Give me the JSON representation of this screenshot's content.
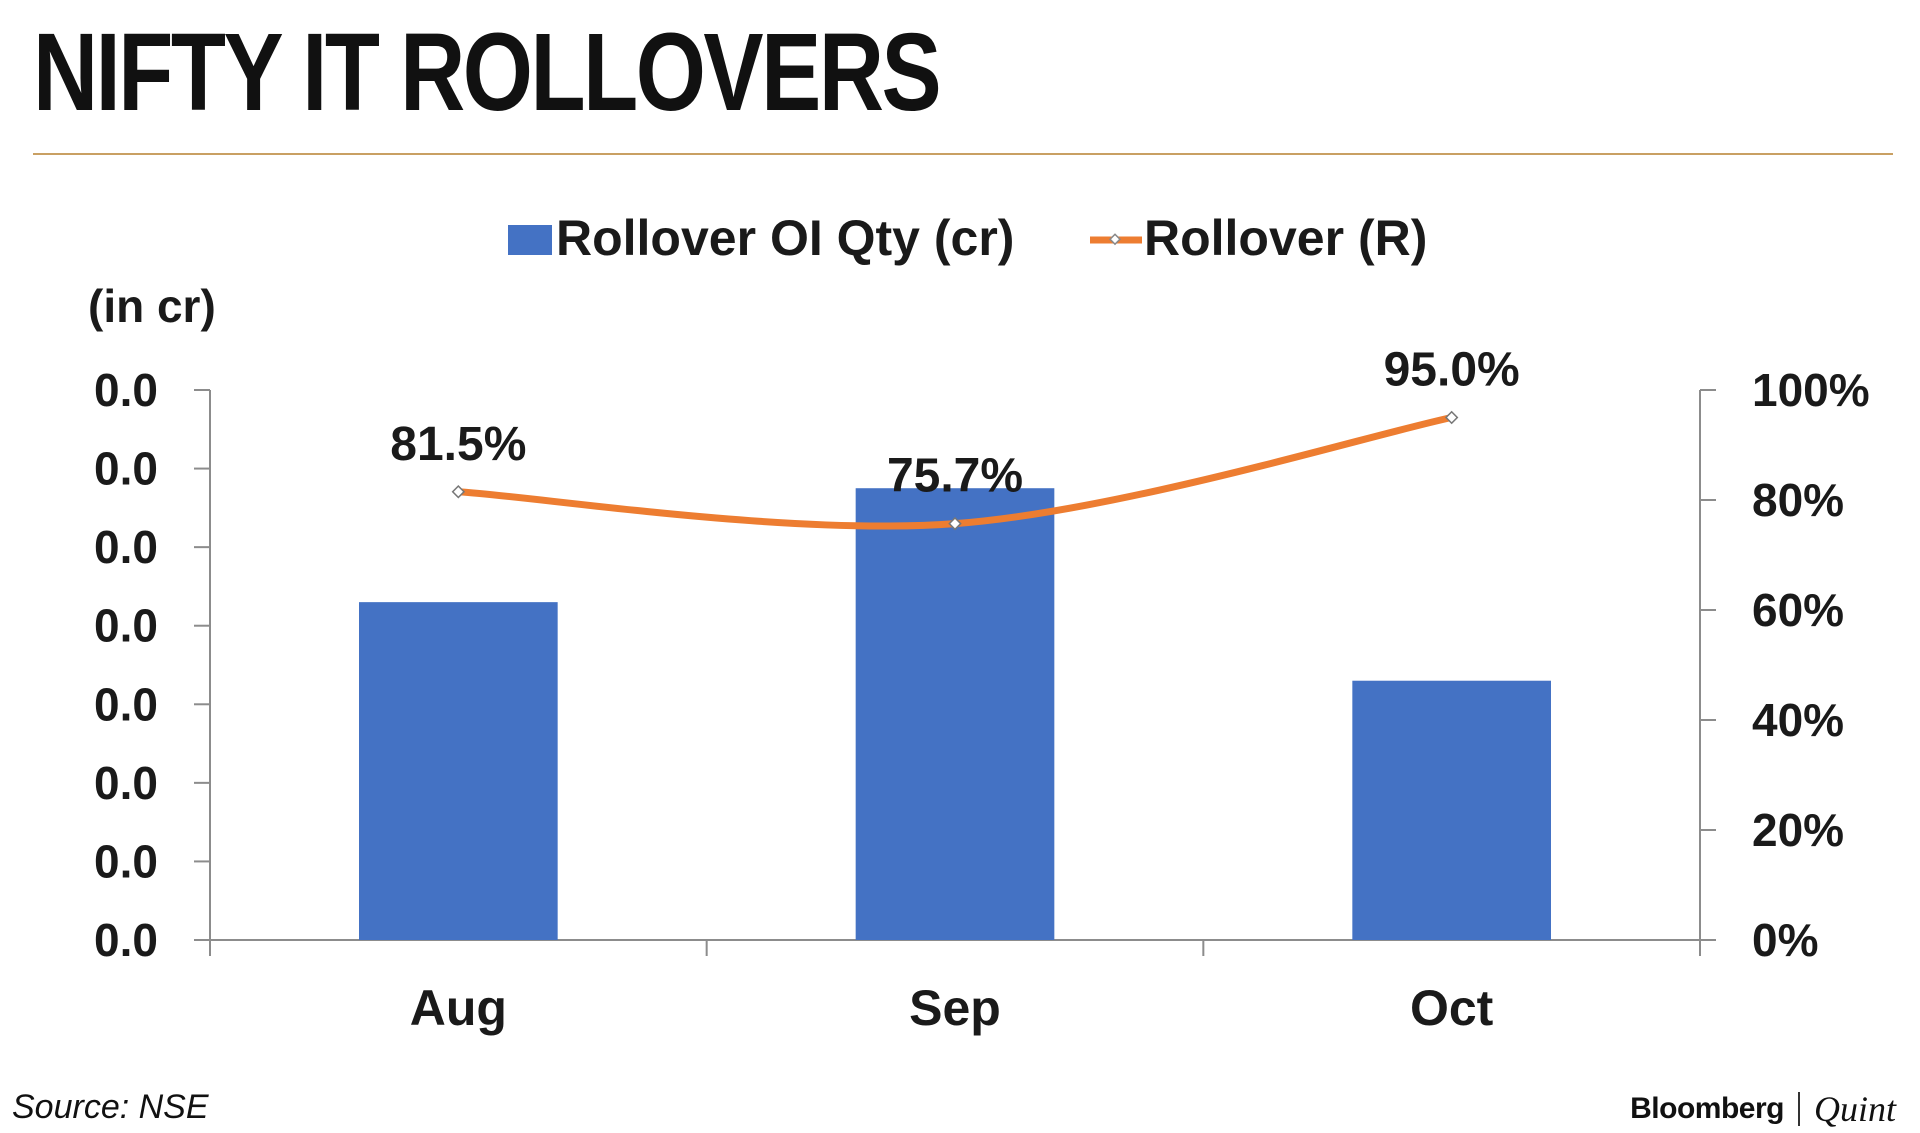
{
  "header": {
    "title": "NIFTY IT ROLLOVERS"
  },
  "footer": {
    "source": "Source: NSE",
    "brand_primary": "Bloomberg",
    "brand_secondary": "Quint"
  },
  "colors": {
    "bar": "#4472c4",
    "line": "#ed7d31",
    "accent_rule": "#c9a063"
  },
  "chart_data": {
    "type": "bar",
    "categories": [
      "Aug",
      "Sep",
      "Oct"
    ],
    "left_axis": {
      "label": "(in cr)",
      "ticks": [
        "0.0",
        "0.0",
        "0.0",
        "0.0",
        "0.0",
        "0.0",
        "0.0",
        "0.0"
      ],
      "ylim": [
        0,
        7
      ]
    },
    "right_axis": {
      "ticks": [
        "0%",
        "20%",
        "40%",
        "60%",
        "80%",
        "100%"
      ],
      "ylim": [
        0,
        100
      ]
    },
    "series": [
      {
        "name": "Rollover OI Qty (cr)",
        "type": "bar",
        "axis": "left",
        "values": [
          4.3,
          5.75,
          3.3
        ]
      },
      {
        "name": "Rollover (R)",
        "type": "line",
        "axis": "right",
        "values": [
          81.5,
          75.7,
          95.0
        ],
        "labels": [
          "81.5%",
          "75.7%",
          "95.0%"
        ]
      }
    ],
    "legend": "top",
    "grid": false
  }
}
